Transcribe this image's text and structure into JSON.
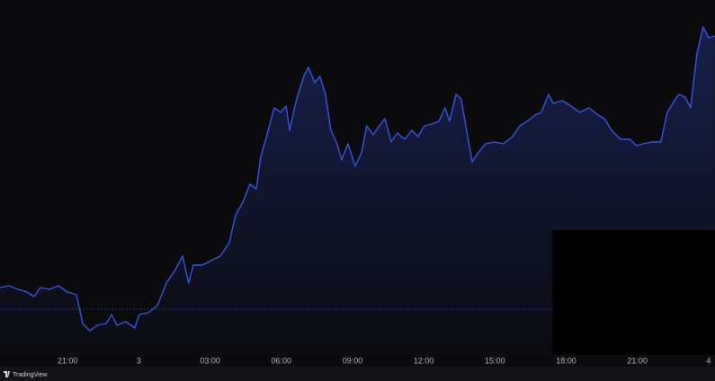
{
  "chart_data": {
    "type": "area",
    "brand": "TradingView",
    "color": "#3356e8",
    "xlim": [
      18.15,
      48.27
    ],
    "ylim": [
      0,
      395
    ],
    "baseline": 51,
    "xticks": [
      {
        "value": 21,
        "label": "21:00"
      },
      {
        "value": 24,
        "label": "3"
      },
      {
        "value": 27,
        "label": "03:00"
      },
      {
        "value": 30,
        "label": "06:00"
      },
      {
        "value": 33,
        "label": "09:00"
      },
      {
        "value": 36,
        "label": "12:00"
      },
      {
        "value": 39,
        "label": "15:00"
      },
      {
        "value": 42,
        "label": "18:00"
      },
      {
        "value": 45,
        "label": "21:00"
      },
      {
        "value": 48,
        "label": "4"
      }
    ],
    "x": [
      18.15,
      18.53,
      18.91,
      19.29,
      19.59,
      19.85,
      20.23,
      20.61,
      20.99,
      21.37,
      21.63,
      21.94,
      22.24,
      22.62,
      22.85,
      23.07,
      23.45,
      23.83,
      24.02,
      24.4,
      24.78,
      25.16,
      25.54,
      25.84,
      26.1,
      26.29,
      26.67,
      27.05,
      27.43,
      27.81,
      28.07,
      28.38,
      28.68,
      28.95,
      29.13,
      29.4,
      29.7,
      29.97,
      30.2,
      30.35,
      30.65,
      30.95,
      31.14,
      31.41,
      31.63,
      31.86,
      32.09,
      32.35,
      32.54,
      32.81,
      33.11,
      33.38,
      33.6,
      33.87,
      34.13,
      34.36,
      34.63,
      34.89,
      35.2,
      35.5,
      35.76,
      36.03,
      36.33,
      36.64,
      36.9,
      37.09,
      37.36,
      37.58,
      37.77,
      38.04,
      38.3,
      38.6,
      38.98,
      39.36,
      39.74,
      40.05,
      40.35,
      40.69,
      40.95,
      41.26,
      41.45,
      41.83,
      42.2,
      42.58,
      42.96,
      43.34,
      43.61,
      43.91,
      44.29,
      44.67,
      44.97,
      45.23,
      45.61,
      45.99,
      46.26,
      46.56,
      46.75,
      47.01,
      47.24,
      47.51,
      47.77,
      48.0,
      48.26
    ],
    "values": [
      75,
      77,
      73,
      70,
      65,
      75,
      73,
      77,
      70,
      67,
      35,
      27,
      33,
      35,
      45,
      33,
      37,
      30,
      45,
      47,
      55,
      80,
      95,
      110,
      80,
      100,
      100,
      105,
      110,
      125,
      155,
      170,
      190,
      185,
      220,
      245,
      275,
      270,
      277,
      250,
      285,
      310,
      320,
      303,
      310,
      290,
      250,
      235,
      217,
      235,
      210,
      225,
      255,
      245,
      255,
      263,
      237,
      247,
      240,
      250,
      243,
      255,
      257,
      260,
      275,
      260,
      290,
      285,
      255,
      215,
      225,
      235,
      237,
      235,
      243,
      255,
      260,
      267,
      270,
      290,
      280,
      283,
      277,
      270,
      275,
      267,
      263,
      250,
      240,
      240,
      233,
      235,
      237,
      237,
      270,
      283,
      290,
      287,
      275,
      335,
      365,
      353,
      355
    ]
  }
}
